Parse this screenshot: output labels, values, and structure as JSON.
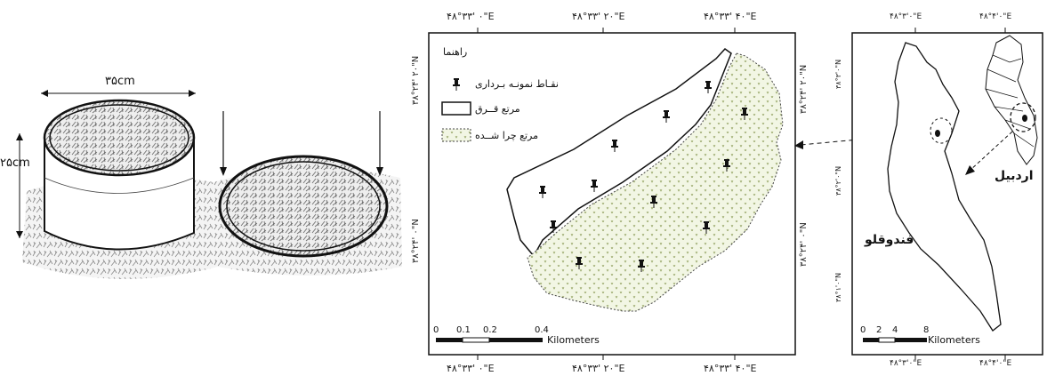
{
  "quadrat_figure": {
    "diameter_label": "۳۵cm",
    "height_label": "۲۵cm"
  },
  "study_map": {
    "top_coords": [
      "۴۸°۳۳' ۰\"E",
      "۴۸°۳۳' ۲۰\"E",
      "۴۸°۳۳' ۴۰\"E"
    ],
    "bottom_coords": [
      "۴۸°۳۳' ۰\"E",
      "۴۸°۳۳' ۲۰\"E",
      "۴۸°۳۳' ۴۰\"E"
    ],
    "left_coords": [
      "۳۸°۲۴' ۲۰\"N",
      "۳۸°۲۴' ۰\"N"
    ],
    "right_coords": [
      "۳۸°۲۴' ۲۰\"N",
      "۳۸°۲۴' ۰\"N"
    ],
    "legend": {
      "title": "راهنما",
      "items": [
        {
          "label": "نقـاط نمونـه بـرداری",
          "symbol": "pushpin-icon"
        },
        {
          "label": "مرتع قــرق",
          "symbol": "white-box"
        },
        {
          "label": "مرتع چرا شــده",
          "symbol": "dotted-box"
        }
      ]
    },
    "scale_ticks": [
      "0",
      "0.1",
      "0.2",
      "0.4"
    ],
    "scale_unit": "Kilometers"
  },
  "locator_map": {
    "top_coords": [
      "۴۸°۳'۰\"E",
      "۴۸°۴'۰\"E"
    ],
    "bottom_coords": [
      "۴۸°۳'۰\"E",
      "۴۸°۴'۰\"E"
    ],
    "left_coords": [
      "۳۸°۳'۰\"N",
      "۳۸°۲'۰\"N",
      "۳۸°۱'۰\"N"
    ],
    "label_city": "اردبیل",
    "label_region": "فندوقلو",
    "scale_ticks": [
      "0",
      "2",
      "4",
      "8"
    ],
    "scale_unit": "Kilometers"
  },
  "colors": {
    "grazed_fill": "#f2f6e4",
    "grazed_dots": "#8a9a55",
    "line": "#111111"
  }
}
